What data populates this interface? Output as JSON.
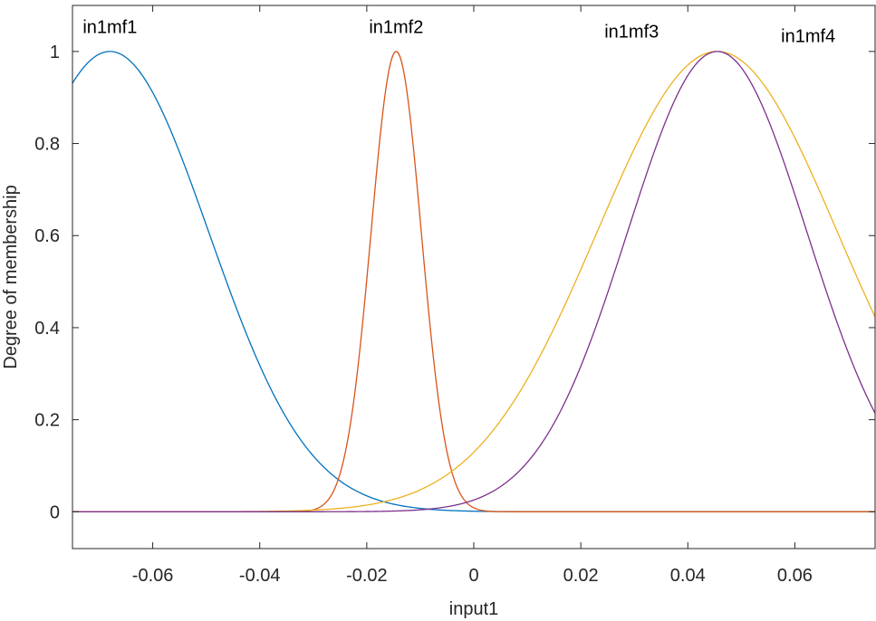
{
  "chart_data": {
    "type": "line",
    "title": "",
    "xlabel": "input1",
    "ylabel": "Degree of membership",
    "xlim": [
      -0.075,
      0.075
    ],
    "ylim": [
      -0.08,
      1.1
    ],
    "grid": false,
    "x_ticks": [
      {
        "value": -0.06,
        "label": "-0.06"
      },
      {
        "value": -0.04,
        "label": "-0.04"
      },
      {
        "value": -0.02,
        "label": "-0.02"
      },
      {
        "value": 0,
        "label": "0"
      },
      {
        "value": 0.02,
        "label": "0.02"
      },
      {
        "value": 0.04,
        "label": "0.04"
      },
      {
        "value": 0.06,
        "label": "0.06"
      }
    ],
    "y_ticks": [
      {
        "value": 0,
        "label": "0"
      },
      {
        "value": 0.2,
        "label": "0.2"
      },
      {
        "value": 0.4,
        "label": "0.4"
      },
      {
        "value": 0.6,
        "label": "0.6"
      },
      {
        "value": 0.8,
        "label": "0.8"
      },
      {
        "value": 1,
        "label": "1"
      }
    ],
    "series": [
      {
        "name": "in1mf1",
        "shape": "gaussian",
        "center": -0.068,
        "sigma": 0.0185,
        "color": "#0072BD",
        "label_at": [
          -0.068,
          1.04
        ]
      },
      {
        "name": "in1mf2",
        "shape": "gaussian",
        "center": -0.0145,
        "sigma": 0.0047,
        "color": "#D95319",
        "label_at": [
          -0.0145,
          1.04
        ]
      },
      {
        "name": "in1mf3",
        "shape": "gaussian",
        "center": 0.0455,
        "sigma": 0.0225,
        "color": "#EDB120",
        "label_at": [
          0.0295,
          1.03
        ]
      },
      {
        "name": "in1mf4",
        "shape": "gaussian",
        "center": 0.0455,
        "sigma": 0.0168,
        "color": "#7E2F8E",
        "label_at": [
          0.0625,
          1.02
        ]
      }
    ]
  }
}
